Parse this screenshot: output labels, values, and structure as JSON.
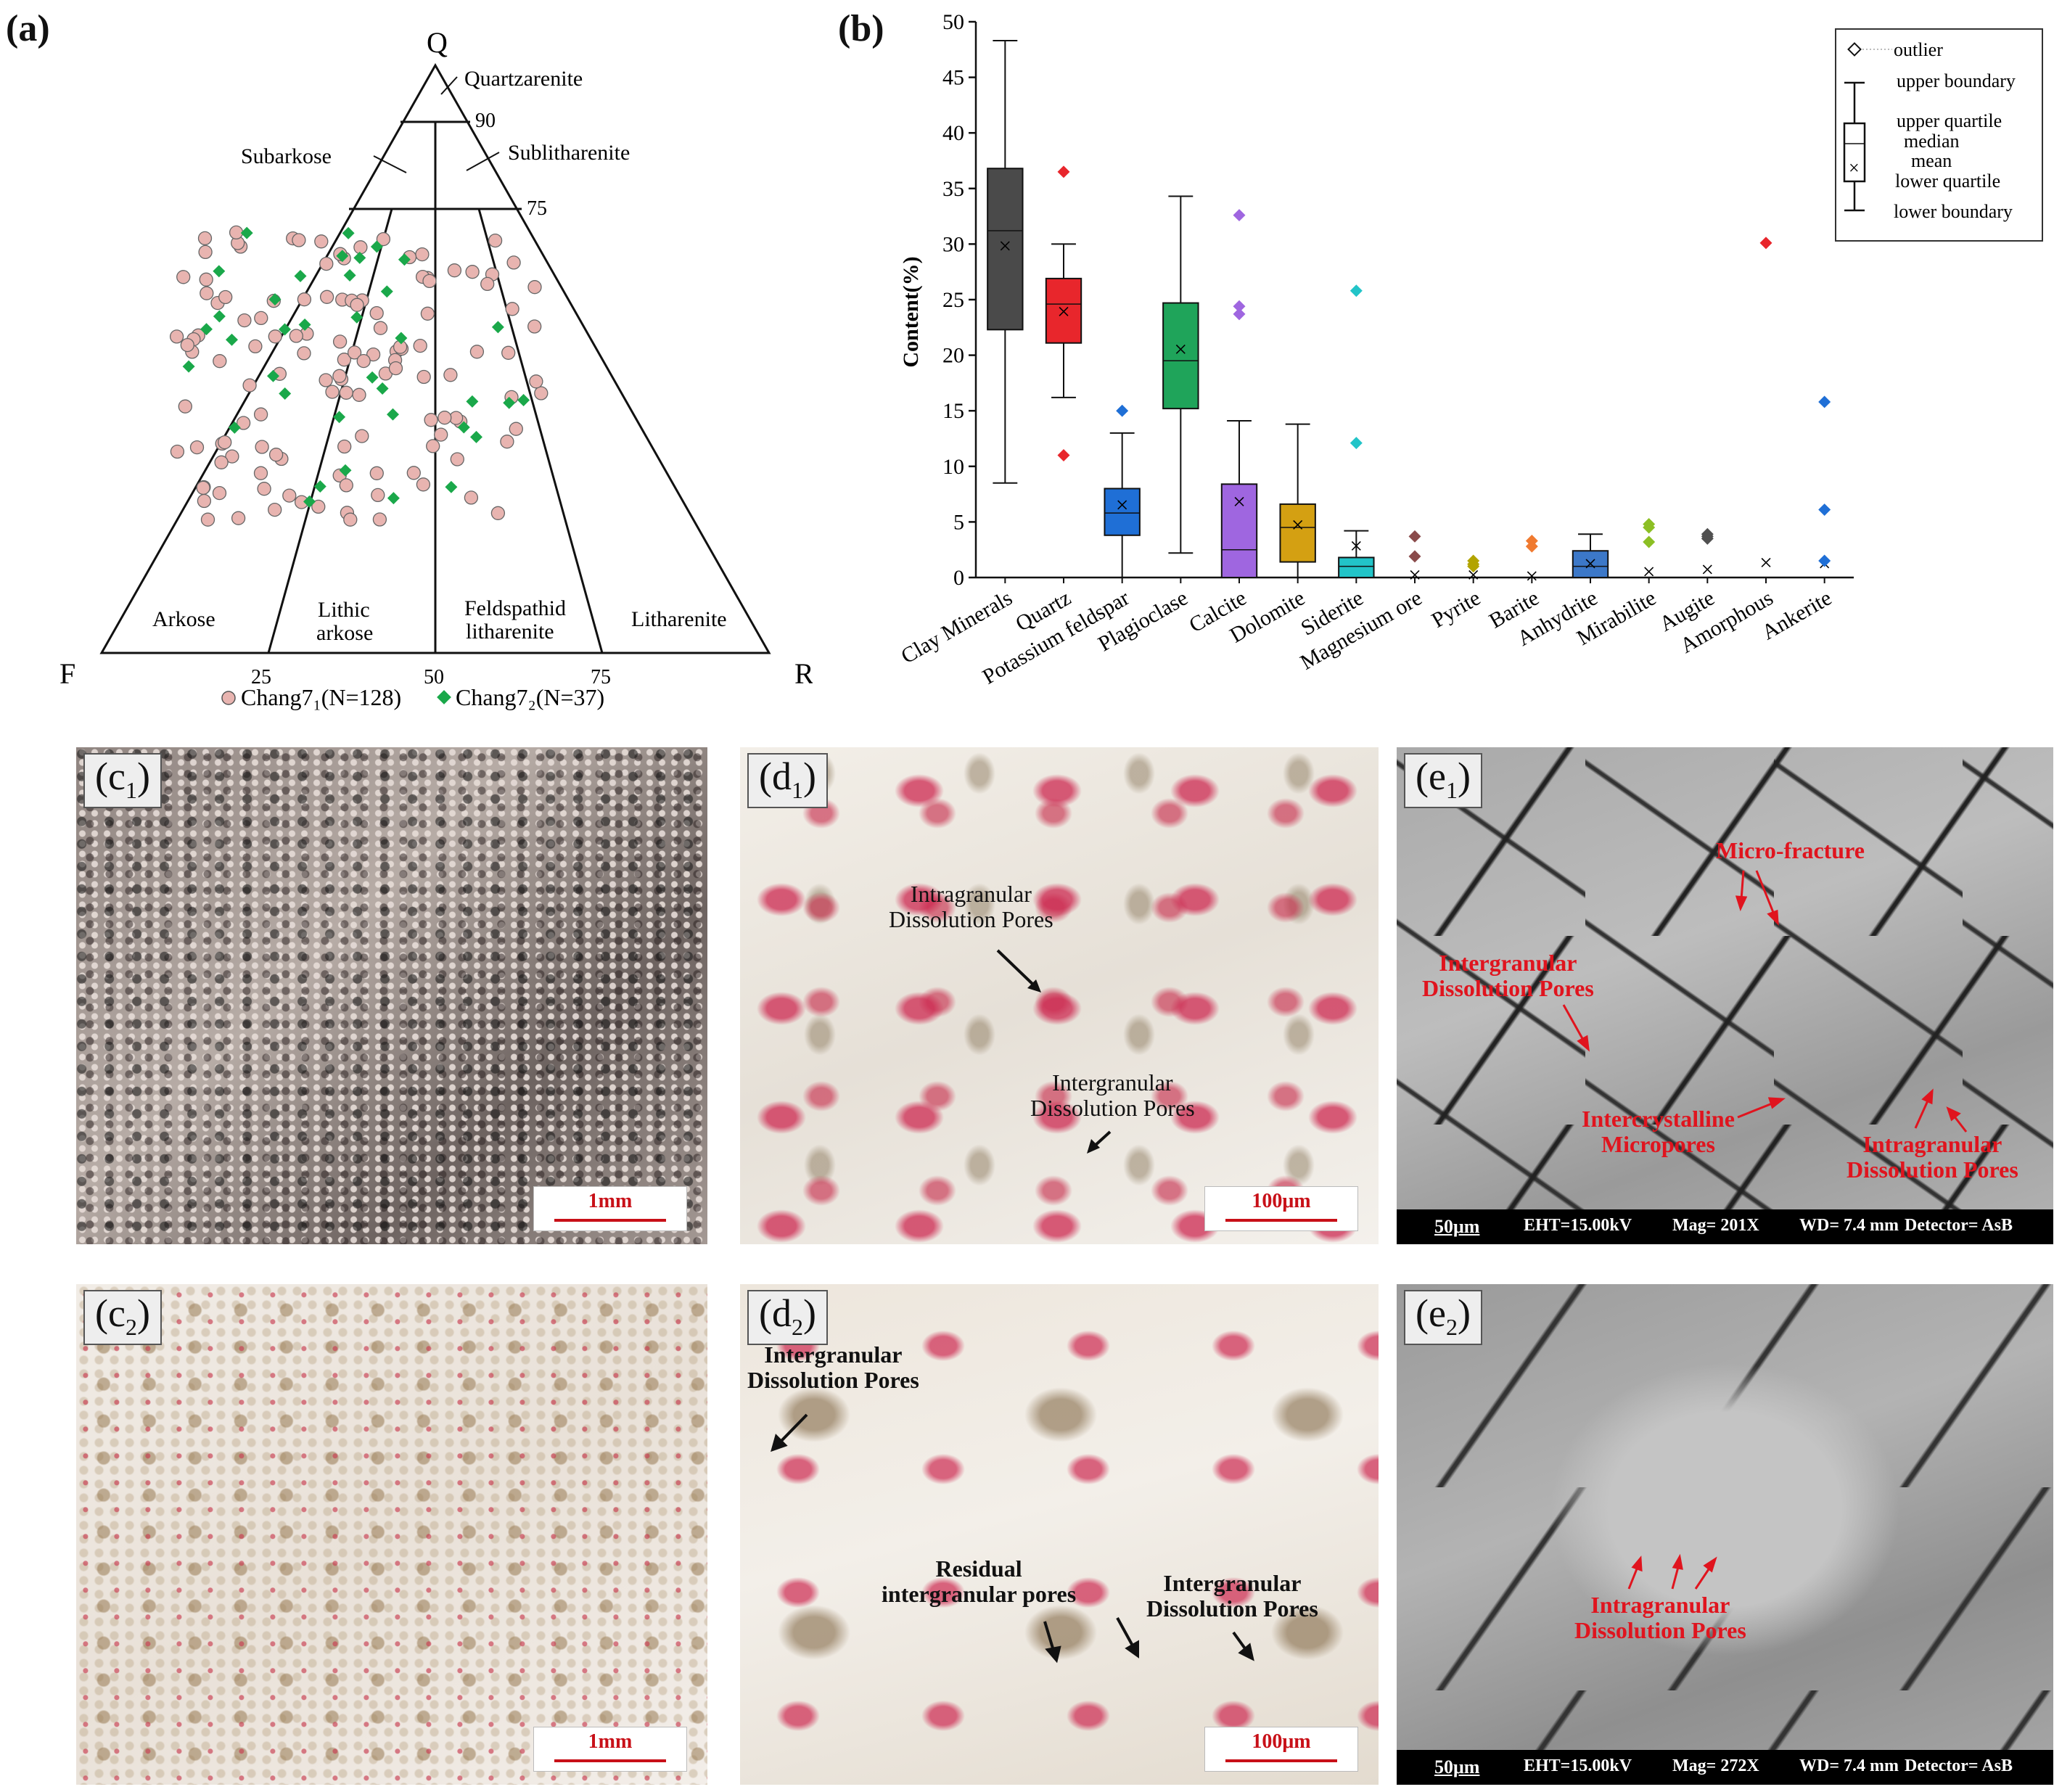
{
  "panel_a": {
    "letter": "(a)",
    "vertex_q": "Q",
    "vertex_f": "F",
    "vertex_r": "R",
    "fields": {
      "quartzarenite": "Quartzarenite",
      "subarkose": "Subarkose",
      "sublitharenite": "Sublitharenite",
      "arkose": "Arkose",
      "lithic_arkose_1": "Lithic",
      "lithic_arkose_2": "arkose",
      "feldspathid_1": "Feldspathid",
      "feldspathid_2": "litharenite",
      "litharenite": "Litharenite"
    },
    "ticks": {
      "q90": "90",
      "q75": "75",
      "b25": "25",
      "b50": "50",
      "b75": "75"
    },
    "legend_1": "Chang7₁(N=128)",
    "legend_2": "Chang7₂(N=37)",
    "colors": {
      "chang71": "#e8b4b0",
      "chang72": "#1aa84a"
    }
  },
  "panel_b": {
    "letter": "(b)",
    "legend": {
      "outlier": "outlier",
      "upper_boundary": "upper boundary",
      "upper_quartile": "upper quartile",
      "median": "median",
      "mean": "mean",
      "lower_quartile": "lower quartile",
      "lower_boundary": "lower boundary"
    }
  },
  "chart_data": {
    "type": "box",
    "xlabel": "",
    "ylabel": "Content(%)",
    "ylim": [
      0,
      50
    ],
    "yticks": [
      0,
      5,
      10,
      15,
      20,
      25,
      30,
      35,
      40,
      45,
      50
    ],
    "categories": [
      "Clay Minerals",
      "Quartz",
      "Potassium feldspar",
      "Plagioclase",
      "Calcite",
      "Dolomite",
      "Siderite",
      "Magnesium ore",
      "Pyrite",
      "Barite",
      "Anhydrite",
      "Mirabilite",
      "Augite",
      "Amorphous",
      "Ankerite"
    ],
    "boxes": [
      {
        "name": "Clay Minerals",
        "min": 8.5,
        "q1": 22.3,
        "median": 31.2,
        "q3": 36.8,
        "max": 48.3,
        "mean": 29.8,
        "outliers": [],
        "color": "#4a4a4a"
      },
      {
        "name": "Quartz",
        "min": 16.2,
        "q1": 21.1,
        "median": 24.6,
        "q3": 26.9,
        "max": 30.0,
        "mean": 23.9,
        "outliers": [
          36.5,
          11.0
        ],
        "color": "#e8262c"
      },
      {
        "name": "Potassium feldspar",
        "min": 0,
        "q1": 3.8,
        "median": 5.8,
        "q3": 8.0,
        "max": 13.0,
        "mean": 6.5,
        "outliers": [
          15.0
        ],
        "color": "#1f6fd6"
      },
      {
        "name": "Plagioclase",
        "min": 2.2,
        "q1": 15.2,
        "median": 19.5,
        "q3": 24.7,
        "max": 34.3,
        "mean": 20.5,
        "outliers": [],
        "color": "#1fa45a"
      },
      {
        "name": "Calcite",
        "min": 0,
        "q1": 0,
        "median": 2.5,
        "q3": 8.4,
        "max": 14.1,
        "mean": 6.8,
        "outliers": [
          32.6,
          24.4,
          23.7
        ],
        "color": "#9f66e0"
      },
      {
        "name": "Dolomite",
        "min": 0,
        "q1": 1.4,
        "median": 4.5,
        "q3": 6.6,
        "max": 13.8,
        "mean": 4.7,
        "outliers": [],
        "color": "#d4a012"
      },
      {
        "name": "Siderite",
        "min": 0,
        "q1": 0,
        "median": 1.0,
        "q3": 1.8,
        "max": 4.2,
        "mean": 2.8,
        "outliers": [
          25.8,
          12.1
        ],
        "color": "#22c4c8"
      },
      {
        "name": "Magnesium ore",
        "min": 0,
        "q1": 0,
        "median": 0,
        "q3": 0,
        "max": 0,
        "mean": 0.2,
        "outliers": [
          3.7,
          1.9
        ],
        "color": "#8a4b4b"
      },
      {
        "name": "Pyrite",
        "min": 0,
        "q1": 0,
        "median": 0,
        "q3": 0,
        "max": 0,
        "mean": 0.2,
        "outliers": [
          1.5,
          1.2,
          1.0
        ],
        "color": "#b2a400"
      },
      {
        "name": "Barite",
        "min": 0,
        "q1": 0,
        "median": 0,
        "q3": 0,
        "max": 0,
        "mean": 0.1,
        "outliers": [
          3.3,
          2.8
        ],
        "color": "#f07a30"
      },
      {
        "name": "Anhydrite",
        "min": 0,
        "q1": 0,
        "median": 1.0,
        "q3": 2.4,
        "max": 3.9,
        "mean": 1.2,
        "outliers": [],
        "color": "#3c78c8"
      },
      {
        "name": "Mirabilite",
        "min": 0,
        "q1": 0,
        "median": 0,
        "q3": 0,
        "max": 0,
        "mean": 0.5,
        "outliers": [
          4.8,
          4.5,
          3.2
        ],
        "color": "#8cbf24"
      },
      {
        "name": "Augite",
        "min": 0,
        "q1": 0,
        "median": 0,
        "q3": 0,
        "max": 0,
        "mean": 0.7,
        "outliers": [
          3.9,
          3.7,
          3.5
        ],
        "color": "#505050"
      },
      {
        "name": "Amorphous",
        "min": 0,
        "q1": 0,
        "median": 0,
        "q3": 0,
        "max": 0,
        "mean": 1.3,
        "outliers": [
          30.1
        ],
        "color": "#e8262c"
      },
      {
        "name": "Ankerite",
        "min": 0,
        "q1": 0,
        "median": 0,
        "q3": 0,
        "max": 0,
        "mean": 1.2,
        "outliers": [
          15.8,
          6.1,
          1.5
        ],
        "color": "#1f6fd6"
      }
    ]
  },
  "photos": {
    "c1": {
      "label": "c",
      "sub": "1",
      "scale": "1mm"
    },
    "c2": {
      "label": "c",
      "sub": "2",
      "scale": "1mm"
    },
    "d1": {
      "label": "d",
      "sub": "1",
      "scale": "100μm",
      "a1_l1": "Intragranular",
      "a1_l2": "Dissolution Pores",
      "a2_l1": "Intergranular",
      "a2_l2": "Dissolution Pores"
    },
    "d2": {
      "label": "d",
      "sub": "2",
      "scale": "100μm",
      "a1_l1": "Intergranular",
      "a1_l2": "Dissolution Pores",
      "a2_l1": "Residual",
      "a2_l2": "intergranular pores",
      "a3_l1": "Intergranular",
      "a3_l2": "Dissolution Pores"
    },
    "e1": {
      "label": "e",
      "sub": "1",
      "a1": "Micro-fracture",
      "a2_l1": "Intergranular",
      "a2_l2": "Dissolution Pores",
      "a3_l1": "Intercrystalline",
      "a3_l2": "Micropores",
      "a4_l1": "Intragranular",
      "a4_l2": "Dissolution Pores",
      "bar": {
        "scale": "50μm",
        "eht": "EHT=15.00kV",
        "mag": "Mag= 201X",
        "wd": "WD= 7.4 mm",
        "det": "Detector= AsB"
      }
    },
    "e2": {
      "label": "e",
      "sub": "2",
      "a1_l1": "Intragranular",
      "a1_l2": "Dissolution Pores",
      "bar": {
        "scale": "50μm",
        "eht": "EHT=15.00kV",
        "mag": "Mag= 272X",
        "wd": "WD= 7.4 mm",
        "det": "Detector= AsB"
      }
    }
  }
}
